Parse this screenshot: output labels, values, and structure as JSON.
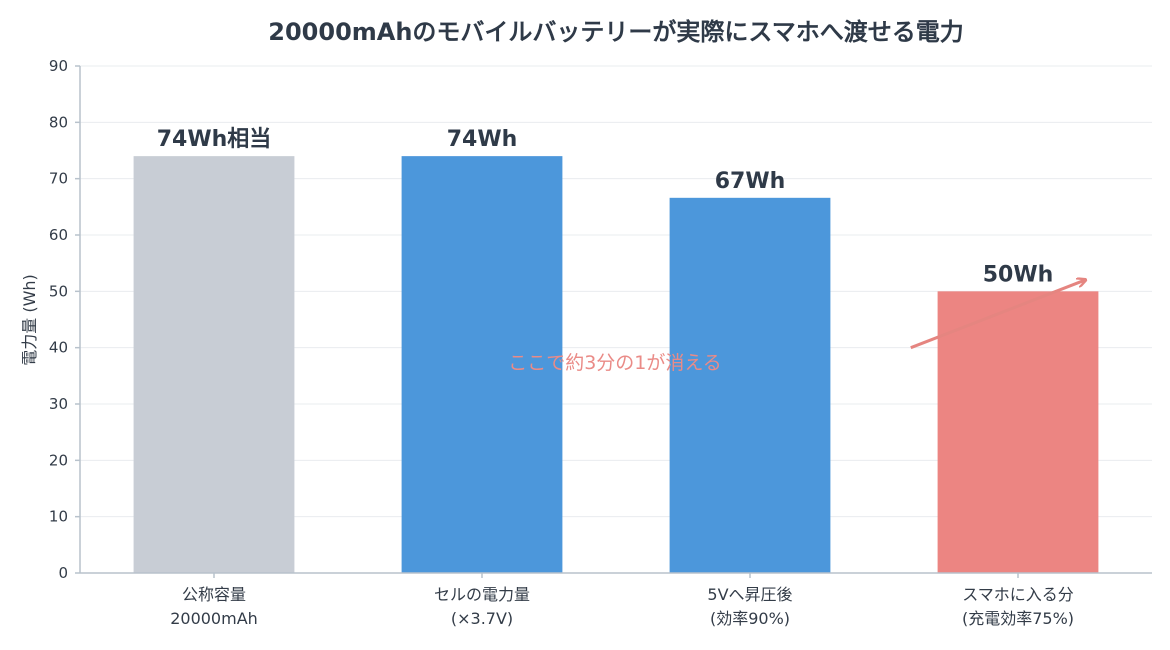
{
  "chart_data": {
    "type": "bar",
    "title": "20000mAhのモバイルバッテリーが実際にスマホへ渡せる電力",
    "ylabel": "電力量 (Wh)",
    "xlabel": "",
    "ylim": [
      0,
      90
    ],
    "yticks": [
      0,
      10,
      20,
      30,
      40,
      50,
      60,
      70,
      80,
      90
    ],
    "grid": true,
    "categories": [
      [
        "公称容量",
        "20000mAh"
      ],
      [
        "セルの電力量",
        "(×3.7V)"
      ],
      [
        "5Vへ昇圧後",
        "(効率90%)"
      ],
      [
        "スマホに入る分",
        "(充電効率75%)"
      ]
    ],
    "values": [
      74,
      74,
      66.6,
      50
    ],
    "data_labels": [
      "74Wh相当",
      "74Wh",
      "67Wh",
      "50Wh"
    ],
    "colors": [
      "#c8cdd5",
      "#4c97db",
      "#4c97db",
      "#ec8582"
    ],
    "annotation": {
      "text": "ここで約3分の1が消える",
      "color": "#ea8b87",
      "arrow_from": [
        2.6,
        40
      ],
      "arrow_to": [
        3.25,
        52
      ]
    }
  }
}
